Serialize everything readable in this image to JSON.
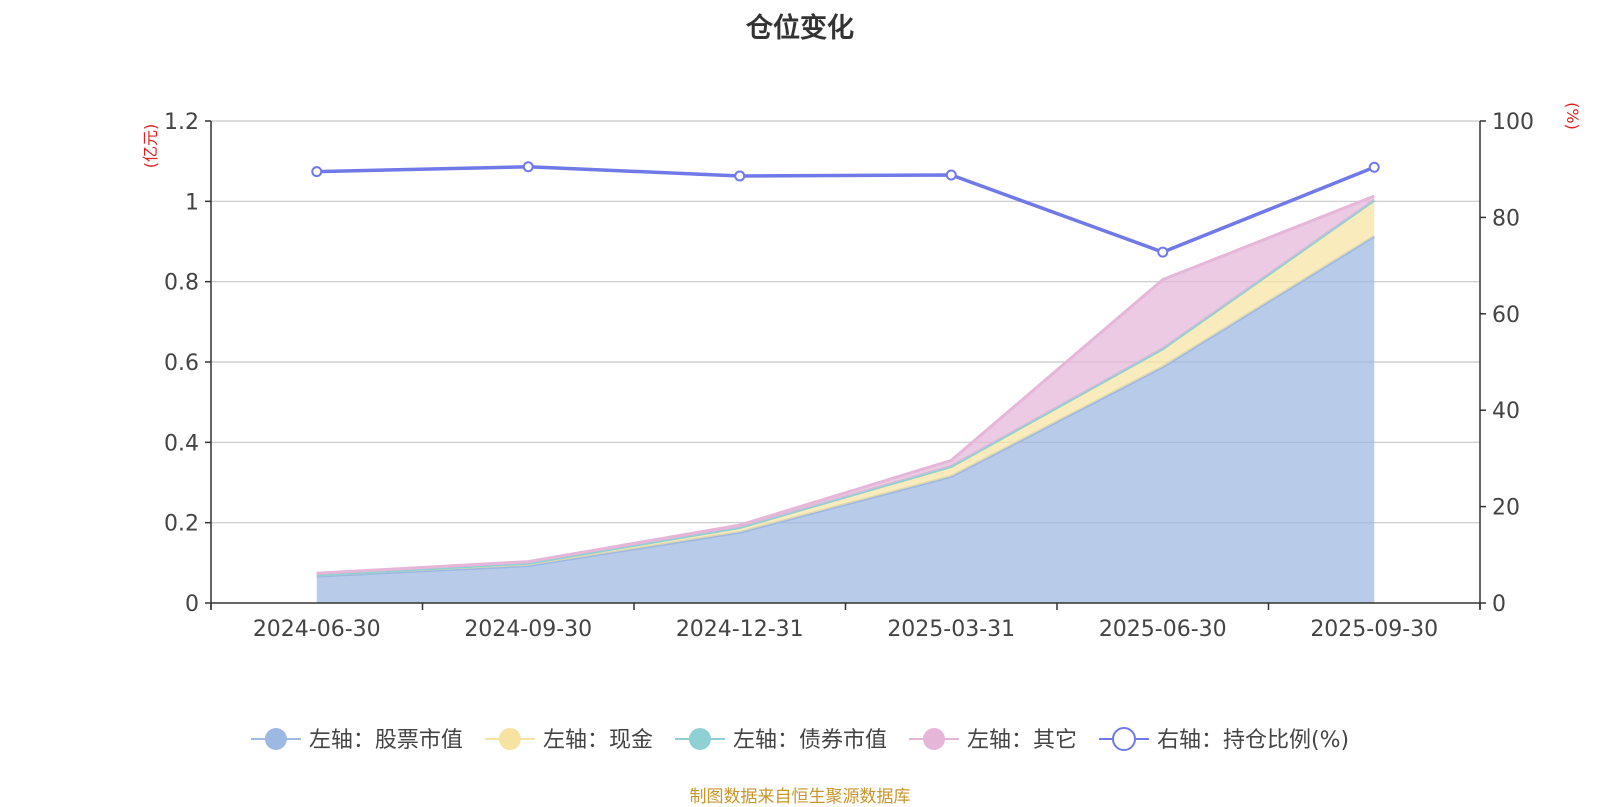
{
  "chart_data": {
    "type": "area",
    "title": "仓位变化",
    "left_axis": {
      "unit": "(亿元)",
      "range": [
        0,
        1.2
      ],
      "ticks": [
        "0",
        "0.2",
        "0.4",
        "0.6",
        "0.8",
        "1",
        "1.2"
      ],
      "tick_values": [
        0,
        0.2,
        0.4,
        0.6,
        0.8,
        1.0,
        1.2
      ]
    },
    "right_axis": {
      "unit": "(%)",
      "range": [
        0,
        100
      ],
      "ticks": [
        "0",
        "20",
        "40",
        "60",
        "80",
        "100"
      ],
      "tick_values": [
        0,
        20,
        40,
        60,
        80,
        100
      ]
    },
    "categories": [
      "2024-06-30",
      "2024-09-30",
      "2024-12-31",
      "2025-03-31",
      "2025-06-30",
      "2025-09-30"
    ],
    "series": [
      {
        "name": "左轴：股票市值",
        "axis": "left",
        "kind": "stacked-area",
        "color": "#9db8e2",
        "values": [
          0.067,
          0.093,
          0.176,
          0.315,
          0.588,
          0.913
        ]
      },
      {
        "name": "左轴：现金",
        "axis": "left",
        "kind": "stacked-area",
        "color": "#f6e3a1",
        "values": [
          0.003,
          0.006,
          0.012,
          0.025,
          0.045,
          0.09
        ]
      },
      {
        "name": "左轴：债券市值",
        "axis": "left",
        "kind": "stacked-area",
        "color": "#8ed0d3",
        "values": [
          0,
          0,
          0,
          0,
          0,
          0
        ]
      },
      {
        "name": "左轴：其它",
        "axis": "left",
        "kind": "stacked-area",
        "color": "#e6b6d8",
        "values": [
          0.004,
          0.004,
          0.006,
          0.015,
          0.172,
          0.01
        ]
      },
      {
        "name": "右轴：持仓比例(%)",
        "axis": "right",
        "kind": "line",
        "color": "#7079e8",
        "values": [
          89.5,
          90.5,
          88.6,
          88.8,
          72.8,
          90.4
        ]
      }
    ],
    "grid": true,
    "legend_position": "bottom",
    "source_note": "制图数据来自恒生聚源数据库"
  }
}
